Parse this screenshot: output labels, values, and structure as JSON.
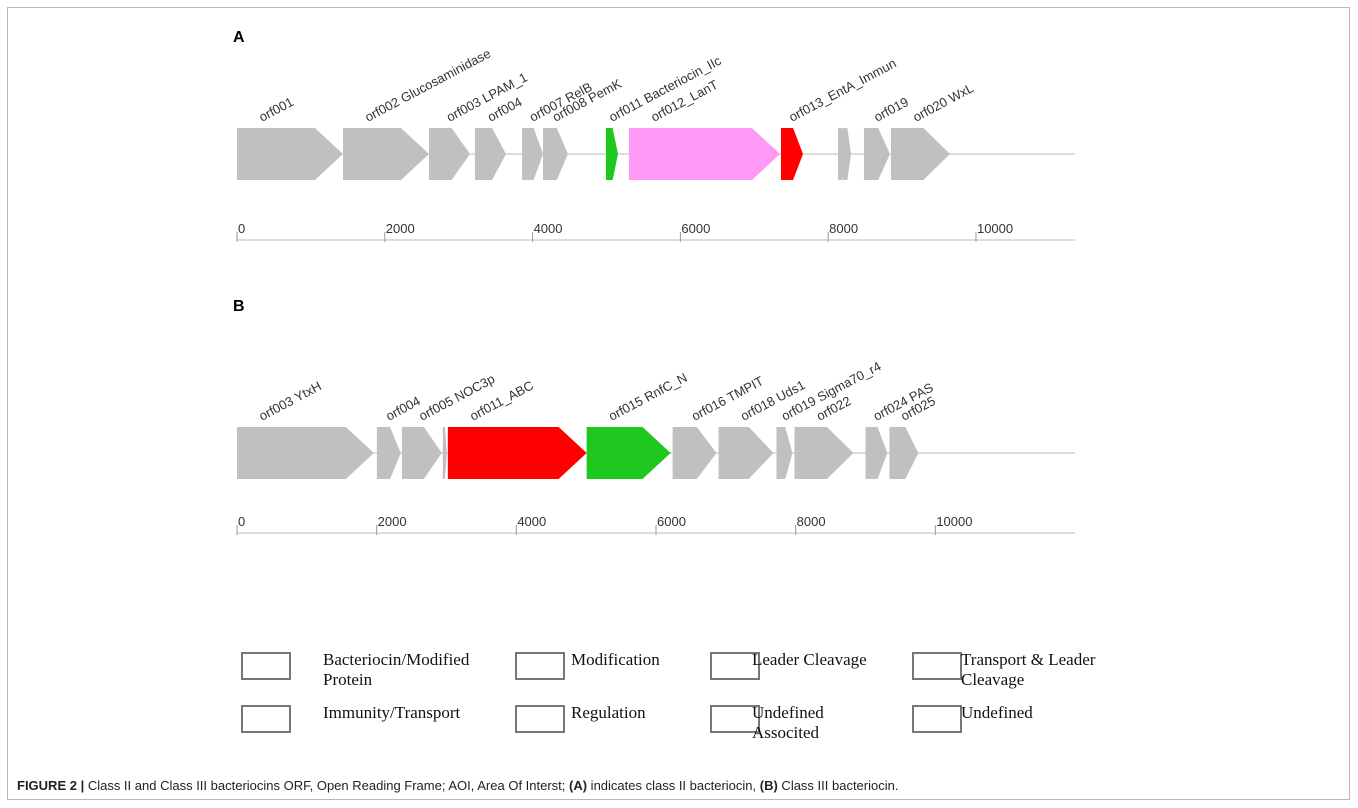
{
  "panels": [
    {
      "label": "A",
      "axis": {
        "range": [
          0,
          11340
        ],
        "ticks": [
          0,
          2000,
          4000,
          6000,
          8000,
          10000
        ]
      },
      "genes": [
        {
          "label": "orf001",
          "start": 0,
          "end": 1434,
          "color": "#c0c0c0"
        },
        {
          "label": "orf002 Glucosaminidase",
          "start": 1434,
          "end": 2598,
          "color": "#c0c0c0"
        },
        {
          "label": "orf003 LPAM_1",
          "start": 2598,
          "end": 3153,
          "color": "#c0c0c0"
        },
        {
          "label": "orf004",
          "start": 3220,
          "end": 3640,
          "color": "#c0c0c0"
        },
        {
          "label": "orf007 RelB",
          "start": 3857,
          "end": 4141,
          "color": "#c0c0c0"
        },
        {
          "label": "orf008 PemK",
          "start": 4141,
          "end": 4479,
          "color": "#c0c0c0"
        },
        {
          "label": "orf011 Bacteriocin_IIc",
          "start": 4993,
          "end": 5156,
          "color": "#1ec81e"
        },
        {
          "label": "orf012_LanT",
          "start": 5304,
          "end": 7348,
          "color": "#ff99f5"
        },
        {
          "label": "orf013_EntA_Immun",
          "start": 7361,
          "end": 7659,
          "color": "#ff0000"
        },
        {
          "label": null,
          "start": 8133,
          "end": 8241,
          "color": "#c0c0c0"
        },
        {
          "label": null,
          "start": 8200,
          "end": 8309,
          "color": "#c0c0c0"
        },
        {
          "label": "orf019",
          "start": 8484,
          "end": 8836,
          "color": "#c0c0c0"
        },
        {
          "label": "orf020 WxL",
          "start": 8850,
          "end": 9648,
          "color": "#c0c0c0"
        }
      ]
    },
    {
      "label": "B",
      "axis": {
        "range": [
          0,
          12000
        ],
        "ticks": [
          0,
          2000,
          4000,
          6000,
          8000,
          10000
        ]
      },
      "genes": [
        {
          "label": "orf003 YtxH",
          "start": 0,
          "end": 1960,
          "color": "#c0c0c0"
        },
        {
          "label": "orf004",
          "start": 2003,
          "end": 2346,
          "color": "#c0c0c0"
        },
        {
          "label": "orf005 NOC3p",
          "start": 2361,
          "end": 2933,
          "color": "#c0c0c0"
        },
        {
          "label": null,
          "start": 2947,
          "end": 3004,
          "color": "#c0c0c0"
        },
        {
          "label": "orf011_ABC",
          "start": 3019,
          "end": 5007,
          "color": "#ff0000"
        },
        {
          "label": "orf015 RnfC_N",
          "start": 5007,
          "end": 6209,
          "color": "#1ec81e"
        },
        {
          "label": "orf016 TMPIT",
          "start": 6238,
          "end": 6867,
          "color": "#c0c0c0"
        },
        {
          "label": "orf018 Uds1",
          "start": 6896,
          "end": 7682,
          "color": "#c0c0c0"
        },
        {
          "label": "orf019 Sigma70_r4",
          "start": 7725,
          "end": 7954,
          "color": "#c0c0c0"
        },
        {
          "label": "orf022",
          "start": 7983,
          "end": 8827,
          "color": "#c0c0c0"
        },
        {
          "label": "orf024 PAS",
          "start": 9000,
          "end": 9313,
          "color": "#c0c0c0"
        },
        {
          "label": "orf025",
          "start": 9342,
          "end": 9757,
          "color": "#c0c0c0"
        }
      ]
    }
  ],
  "legend": [
    {
      "label": "Bacteriocin/Modified Protein",
      "colors": [
        "#1ec81e",
        "#14a014",
        "#0a640a"
      ]
    },
    {
      "label": "Modification",
      "colors": [
        "#0000ff"
      ]
    },
    {
      "label": "Leader Cleavage",
      "colors": [
        "#4b0096"
      ]
    },
    {
      "label": "Transport & Leader Cleavage",
      "colors": [
        "#ff99f5"
      ]
    },
    {
      "label": "Immunity/Transport",
      "colors": [
        "#ff0000"
      ]
    },
    {
      "label": "Regulation",
      "colors": [
        "#c8c800"
      ]
    },
    {
      "label": "Undefined Associted",
      "colors": [
        "#009696"
      ]
    },
    {
      "label": "Undefined",
      "colors": [
        "#c0c0c0"
      ]
    }
  ],
  "caption": {
    "figure": "FIGURE 2 |",
    "text1": " Class II and Class III bacteriocins ORF, Open Reading Frame; AOI, Area Of Interst; ",
    "a": "(A)",
    "text2": " indicates class II bacteriocin, ",
    "b": "(B)",
    "text3": " Class III bacteriocin."
  }
}
